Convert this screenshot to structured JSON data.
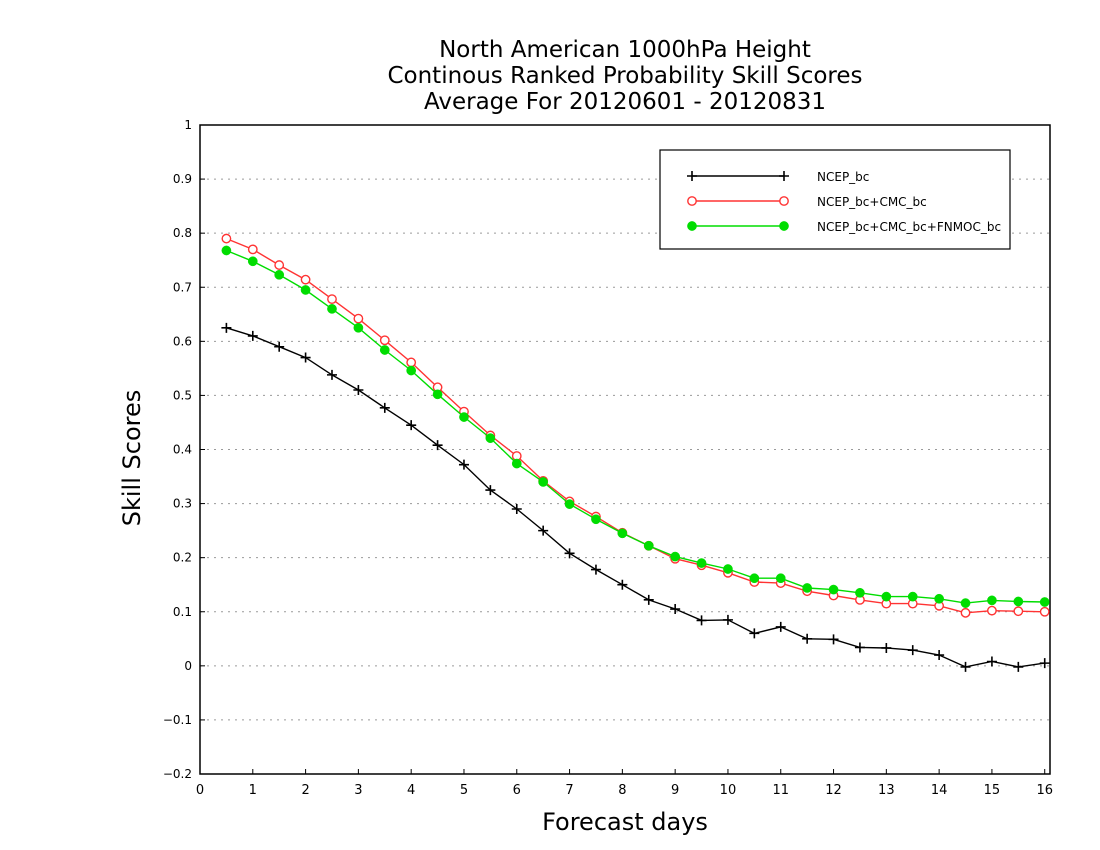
{
  "chart_data": {
    "type": "line",
    "title": [
      "North American 1000hPa Height",
      "Continous Ranked Probability Skill Scores",
      "Average For 20120601 - 20120831"
    ],
    "xlabel": "Forecast days",
    "ylabel": "Skill Scores",
    "xlim": [
      0,
      16.1
    ],
    "ylim": [
      -0.2,
      1
    ],
    "xticks": [
      0,
      1,
      2,
      3,
      4,
      5,
      6,
      7,
      8,
      9,
      10,
      11,
      12,
      13,
      14,
      15,
      16
    ],
    "yticks": [
      -0.2,
      -0.1,
      0,
      0.1,
      0.2,
      0.3,
      0.4,
      0.5,
      0.6,
      0.7,
      0.8,
      0.9,
      1
    ],
    "ytick_labels": [
      "−0.2",
      "−0.1",
      "0",
      "0.1",
      "0.2",
      "0.3",
      "0.4",
      "0.5",
      "0.6",
      "0.7",
      "0.8",
      "0.9",
      "1"
    ],
    "grid": "horizontal dotted",
    "legend_position": "top-right",
    "x": [
      0.5,
      1,
      1.5,
      2,
      2.5,
      3,
      3.5,
      4,
      4.5,
      5,
      5.5,
      6,
      6.5,
      7,
      7.5,
      8,
      8.5,
      9,
      9.5,
      10,
      10.5,
      11,
      11.5,
      12,
      12.5,
      13,
      13.5,
      14,
      14.5,
      15,
      15.5,
      16
    ],
    "series": [
      {
        "name": "NCEP_bc",
        "color": "#000000",
        "marker": "plus",
        "values": [
          0.625,
          0.61,
          0.59,
          0.57,
          0.538,
          0.51,
          0.477,
          0.445,
          0.408,
          0.372,
          0.325,
          0.29,
          0.25,
          0.208,
          0.178,
          0.15,
          0.122,
          0.105,
          0.084,
          0.085,
          0.06,
          0.072,
          0.05,
          0.049,
          0.034,
          0.033,
          0.029,
          0.02,
          -0.002,
          0.008,
          -0.002,
          0.005
        ]
      },
      {
        "name": "NCEP_bc+CMC_bc",
        "color": "#ff3333",
        "marker": "open-circle",
        "values": [
          0.79,
          0.77,
          0.741,
          0.714,
          0.678,
          0.642,
          0.602,
          0.561,
          0.515,
          0.47,
          0.426,
          0.388,
          0.342,
          0.304,
          0.276,
          0.246,
          0.222,
          0.198,
          0.186,
          0.172,
          0.155,
          0.153,
          0.138,
          0.13,
          0.122,
          0.115,
          0.115,
          0.111,
          0.098,
          0.102,
          0.101,
          0.1
        ]
      },
      {
        "name": "NCEP_bc+CMC_bc+FNMOC_bc",
        "color": "#00dd00",
        "marker": "filled-circle",
        "values": [
          0.768,
          0.748,
          0.723,
          0.695,
          0.66,
          0.625,
          0.584,
          0.546,
          0.502,
          0.46,
          0.421,
          0.374,
          0.34,
          0.299,
          0.271,
          0.245,
          0.222,
          0.202,
          0.19,
          0.179,
          0.162,
          0.162,
          0.144,
          0.141,
          0.135,
          0.128,
          0.128,
          0.124,
          0.116,
          0.121,
          0.119,
          0.118
        ]
      }
    ]
  }
}
